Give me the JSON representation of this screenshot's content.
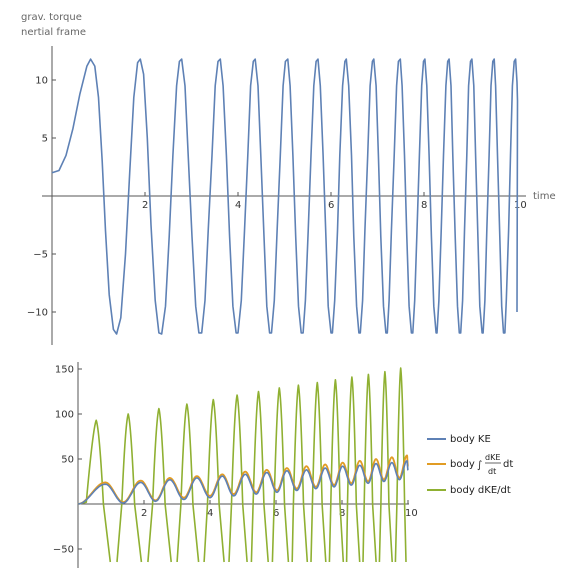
{
  "chart_data": [
    {
      "type": "line",
      "title": "",
      "ylabel_lines": [
        "grav. torque",
        "nertial frame"
      ],
      "xlabel": "time",
      "xlim": [
        0,
        10
      ],
      "ylim": [
        -13,
        13
      ],
      "xticks": [
        2,
        4,
        6,
        8,
        10
      ],
      "yticks": [
        -10,
        -5,
        5,
        10
      ],
      "ytick_labels": [
        "−10",
        "−5",
        "5",
        "10"
      ],
      "grid": false,
      "series": [
        {
          "color": "#5e81b5",
          "description": "grav. torque oscillation",
          "points": [
            [
              0.0,
              2.0
            ],
            [
              0.15,
              2.2
            ],
            [
              0.3,
              3.5
            ],
            [
              0.45,
              5.8
            ],
            [
              0.6,
              8.8
            ],
            [
              0.75,
              11.2
            ],
            [
              0.83,
              11.8
            ],
            [
              0.92,
              11.2
            ],
            [
              1.0,
              8.5
            ],
            [
              1.08,
              3.0
            ],
            [
              1.15,
              -3.0
            ],
            [
              1.23,
              -8.5
            ],
            [
              1.32,
              -11.5
            ],
            [
              1.39,
              -11.9
            ],
            [
              1.48,
              -10.5
            ],
            [
              1.58,
              -5.0
            ],
            [
              1.67,
              2.0
            ],
            [
              1.76,
              8.5
            ],
            [
              1.84,
              11.5
            ],
            [
              1.9,
              11.8
            ],
            [
              1.97,
              10.5
            ],
            [
              2.05,
              5.0
            ],
            [
              2.13,
              -2.5
            ],
            [
              2.22,
              -9.0
            ],
            [
              2.3,
              -11.8
            ],
            [
              2.36,
              -11.9
            ],
            [
              2.44,
              -9.5
            ],
            [
              2.52,
              -3.5
            ],
            [
              2.6,
              3.5
            ],
            [
              2.68,
              9.5
            ],
            [
              2.74,
              11.6
            ],
            [
              2.79,
              11.8
            ],
            [
              2.86,
              9.5
            ],
            [
              2.93,
              3.5
            ],
            [
              3.01,
              -3.5
            ],
            [
              3.09,
              -9.5
            ],
            [
              3.16,
              -11.8
            ],
            [
              3.22,
              -11.8
            ],
            [
              3.29,
              -9.0
            ],
            [
              3.36,
              -3.0
            ],
            [
              3.44,
              3.5
            ],
            [
              3.51,
              9.5
            ],
            [
              3.57,
              11.6
            ],
            [
              3.62,
              11.8
            ],
            [
              3.68,
              9.5
            ],
            [
              3.75,
              3.5
            ],
            [
              3.82,
              -3.5
            ],
            [
              3.89,
              -9.5
            ],
            [
              3.96,
              -11.8
            ],
            [
              4.0,
              -11.8
            ],
            [
              4.07,
              -9.0
            ],
            [
              4.14,
              -3.0
            ],
            [
              4.21,
              3.5
            ],
            [
              4.27,
              9.5
            ],
            [
              4.33,
              11.6
            ],
            [
              4.37,
              11.8
            ],
            [
              4.43,
              9.5
            ],
            [
              4.49,
              3.5
            ],
            [
              4.56,
              -3.5
            ],
            [
              4.62,
              -9.5
            ],
            [
              4.68,
              -11.8
            ],
            [
              4.72,
              -11.8
            ],
            [
              4.78,
              -9.0
            ],
            [
              4.84,
              -3.0
            ],
            [
              4.91,
              3.5
            ],
            [
              4.97,
              9.5
            ],
            [
              5.02,
              11.6
            ],
            [
              5.07,
              11.8
            ],
            [
              5.12,
              9.5
            ],
            [
              5.18,
              3.5
            ],
            [
              5.24,
              -3.5
            ],
            [
              5.3,
              -9.5
            ],
            [
              5.36,
              -11.8
            ],
            [
              5.4,
              -11.8
            ],
            [
              5.45,
              -9.0
            ],
            [
              5.51,
              -3.0
            ],
            [
              5.57,
              3.5
            ],
            [
              5.63,
              9.5
            ],
            [
              5.68,
              11.6
            ],
            [
              5.72,
              11.8
            ],
            [
              5.77,
              9.5
            ],
            [
              5.83,
              3.5
            ],
            [
              5.89,
              -3.5
            ],
            [
              5.94,
              -9.5
            ],
            [
              6.0,
              -11.8
            ],
            [
              6.03,
              -11.8
            ],
            [
              6.08,
              -9.0
            ],
            [
              6.14,
              -3.0
            ],
            [
              6.19,
              3.5
            ],
            [
              6.25,
              9.5
            ],
            [
              6.3,
              11.6
            ],
            [
              6.33,
              11.8
            ],
            [
              6.38,
              9.5
            ],
            [
              6.44,
              3.5
            ],
            [
              6.49,
              -3.5
            ],
            [
              6.55,
              -9.5
            ],
            [
              6.6,
              -11.8
            ],
            [
              6.63,
              -11.8
            ],
            [
              6.68,
              -9.0
            ],
            [
              6.73,
              -3.0
            ],
            [
              6.79,
              3.5
            ],
            [
              6.84,
              9.5
            ],
            [
              6.89,
              11.6
            ],
            [
              6.92,
              11.8
            ],
            [
              6.97,
              9.5
            ],
            [
              7.02,
              3.5
            ],
            [
              7.07,
              -3.5
            ],
            [
              7.13,
              -9.5
            ],
            [
              7.18,
              -11.8
            ],
            [
              7.21,
              -11.8
            ],
            [
              7.25,
              -9.0
            ],
            [
              7.3,
              -3.0
            ],
            [
              7.36,
              3.5
            ],
            [
              7.41,
              9.5
            ],
            [
              7.45,
              11.6
            ],
            [
              7.49,
              11.8
            ],
            [
              7.53,
              9.5
            ],
            [
              7.58,
              3.5
            ],
            [
              7.63,
              -3.5
            ],
            [
              7.68,
              -9.5
            ],
            [
              7.73,
              -11.8
            ],
            [
              7.76,
              -11.8
            ],
            [
              7.8,
              -9.0
            ],
            [
              7.85,
              -3.0
            ],
            [
              7.9,
              3.5
            ],
            [
              7.95,
              9.5
            ],
            [
              7.99,
              11.6
            ],
            [
              8.02,
              11.8
            ],
            [
              8.06,
              9.5
            ],
            [
              8.11,
              3.5
            ],
            [
              8.16,
              -3.5
            ],
            [
              8.21,
              -9.5
            ],
            [
              8.26,
              -11.8
            ],
            [
              8.28,
              -11.8
            ],
            [
              8.32,
              -9.0
            ],
            [
              8.37,
              -3.0
            ],
            [
              8.42,
              3.5
            ],
            [
              8.47,
              9.5
            ],
            [
              8.51,
              11.6
            ],
            [
              8.54,
              11.8
            ],
            [
              8.58,
              9.5
            ],
            [
              8.62,
              3.5
            ],
            [
              8.67,
              -3.5
            ],
            [
              8.72,
              -9.5
            ],
            [
              8.76,
              -11.8
            ],
            [
              8.79,
              -11.8
            ],
            [
              8.83,
              -9.0
            ],
            [
              8.87,
              -3.0
            ],
            [
              8.92,
              3.5
            ],
            [
              8.96,
              9.5
            ],
            [
              9.0,
              11.6
            ],
            [
              9.03,
              11.8
            ],
            [
              9.07,
              9.5
            ],
            [
              9.11,
              3.5
            ],
            [
              9.16,
              -3.5
            ],
            [
              9.2,
              -9.5
            ],
            [
              9.25,
              -11.8
            ],
            [
              9.27,
              -11.8
            ],
            [
              9.31,
              -9.0
            ],
            [
              9.35,
              -3.0
            ],
            [
              9.4,
              3.5
            ],
            [
              9.44,
              9.5
            ],
            [
              9.48,
              11.6
            ],
            [
              9.51,
              11.8
            ],
            [
              9.54,
              9.5
            ],
            [
              9.58,
              3.5
            ],
            [
              9.63,
              -3.5
            ],
            [
              9.67,
              -9.5
            ],
            [
              9.71,
              -11.8
            ],
            [
              9.74,
              -11.8
            ],
            [
              9.77,
              -9.0
            ],
            [
              9.82,
              -3.0
            ],
            [
              9.86,
              3.5
            ],
            [
              9.9,
              9.5
            ],
            [
              9.94,
              11.6
            ],
            [
              9.97,
              11.8
            ],
            [
              10.0,
              9.8
            ],
            [
              10.01,
              8.2
            ],
            [
              10.0,
              -10.0
            ]
          ]
        }
      ]
    },
    {
      "type": "line",
      "title": "",
      "xlabel": "",
      "ylabel": "",
      "xlim": [
        0,
        10
      ],
      "ylim": [
        -60,
        160
      ],
      "xticks": [
        2,
        4,
        6,
        8,
        10
      ],
      "yticks": [
        -50,
        50,
        100,
        150
      ],
      "ytick_labels": [
        "−50",
        "50",
        "100",
        "150"
      ],
      "grid": false,
      "legend_position": "right",
      "series": [
        {
          "name": "body KE",
          "color": "#5e81b5",
          "peaks": [
            [
              0.83,
              22
            ],
            [
              1.9,
              24
            ],
            [
              2.78,
              27
            ],
            [
              3.6,
              29
            ],
            [
              4.37,
              31
            ],
            [
              5.07,
              33
            ],
            [
              5.72,
              35
            ],
            [
              6.33,
              37
            ],
            [
              6.92,
              38
            ],
            [
              7.49,
              40
            ],
            [
              8.02,
              42
            ],
            [
              8.54,
              43
            ],
            [
              9.03,
              45
            ],
            [
              9.51,
              46
            ],
            [
              9.97,
              48
            ]
          ],
          "troughs": [
            [
              0.0,
              0
            ],
            [
              1.37,
              1
            ],
            [
              2.35,
              3
            ],
            [
              3.21,
              5
            ],
            [
              4.0,
              7
            ],
            [
              4.72,
              9
            ],
            [
              5.4,
              11
            ],
            [
              6.03,
              13
            ],
            [
              6.63,
              15
            ],
            [
              7.21,
              17
            ],
            [
              7.76,
              19
            ],
            [
              8.28,
              21
            ],
            [
              8.79,
              23
            ],
            [
              9.27,
              25
            ],
            [
              9.74,
              27
            ]
          ]
        },
        {
          "name": "body ∫dKE/dt dt",
          "color": "#e19c24",
          "peaks": [
            [
              0.83,
              24
            ],
            [
              1.9,
              26
            ],
            [
              2.78,
              29
            ],
            [
              3.6,
              31
            ],
            [
              4.37,
              33
            ],
            [
              5.07,
              36
            ],
            [
              5.72,
              38
            ],
            [
              6.33,
              40
            ],
            [
              6.92,
              42
            ],
            [
              7.49,
              44
            ],
            [
              8.02,
              46
            ],
            [
              8.54,
              48
            ],
            [
              9.03,
              50
            ],
            [
              9.51,
              52
            ],
            [
              9.97,
              54
            ]
          ],
          "troughs": [
            [
              0.0,
              0
            ],
            [
              1.37,
              2
            ],
            [
              2.35,
              4
            ],
            [
              3.21,
              7
            ],
            [
              4.0,
              9
            ],
            [
              4.72,
              11
            ],
            [
              5.4,
              13
            ],
            [
              6.03,
              15
            ],
            [
              6.63,
              17
            ],
            [
              7.21,
              19
            ],
            [
              7.76,
              21
            ],
            [
              8.28,
              23
            ],
            [
              8.79,
              25
            ],
            [
              9.27,
              27
            ],
            [
              9.74,
              29
            ]
          ]
        },
        {
          "name": "body dKE/dt",
          "color": "#8fb032",
          "peaks": [
            [
              0.55,
              93
            ],
            [
              1.52,
              100
            ],
            [
              2.45,
              106
            ],
            [
              3.3,
              111
            ],
            [
              4.1,
              116
            ],
            [
              4.82,
              121
            ],
            [
              5.47,
              125
            ],
            [
              6.1,
              129
            ],
            [
              6.68,
              132
            ],
            [
              7.25,
              135
            ],
            [
              7.8,
              138
            ],
            [
              8.3,
              141
            ],
            [
              8.8,
              144
            ],
            [
              9.3,
              147
            ],
            [
              9.78,
              151
            ]
          ],
          "min_value": -60
        }
      ]
    }
  ]
}
